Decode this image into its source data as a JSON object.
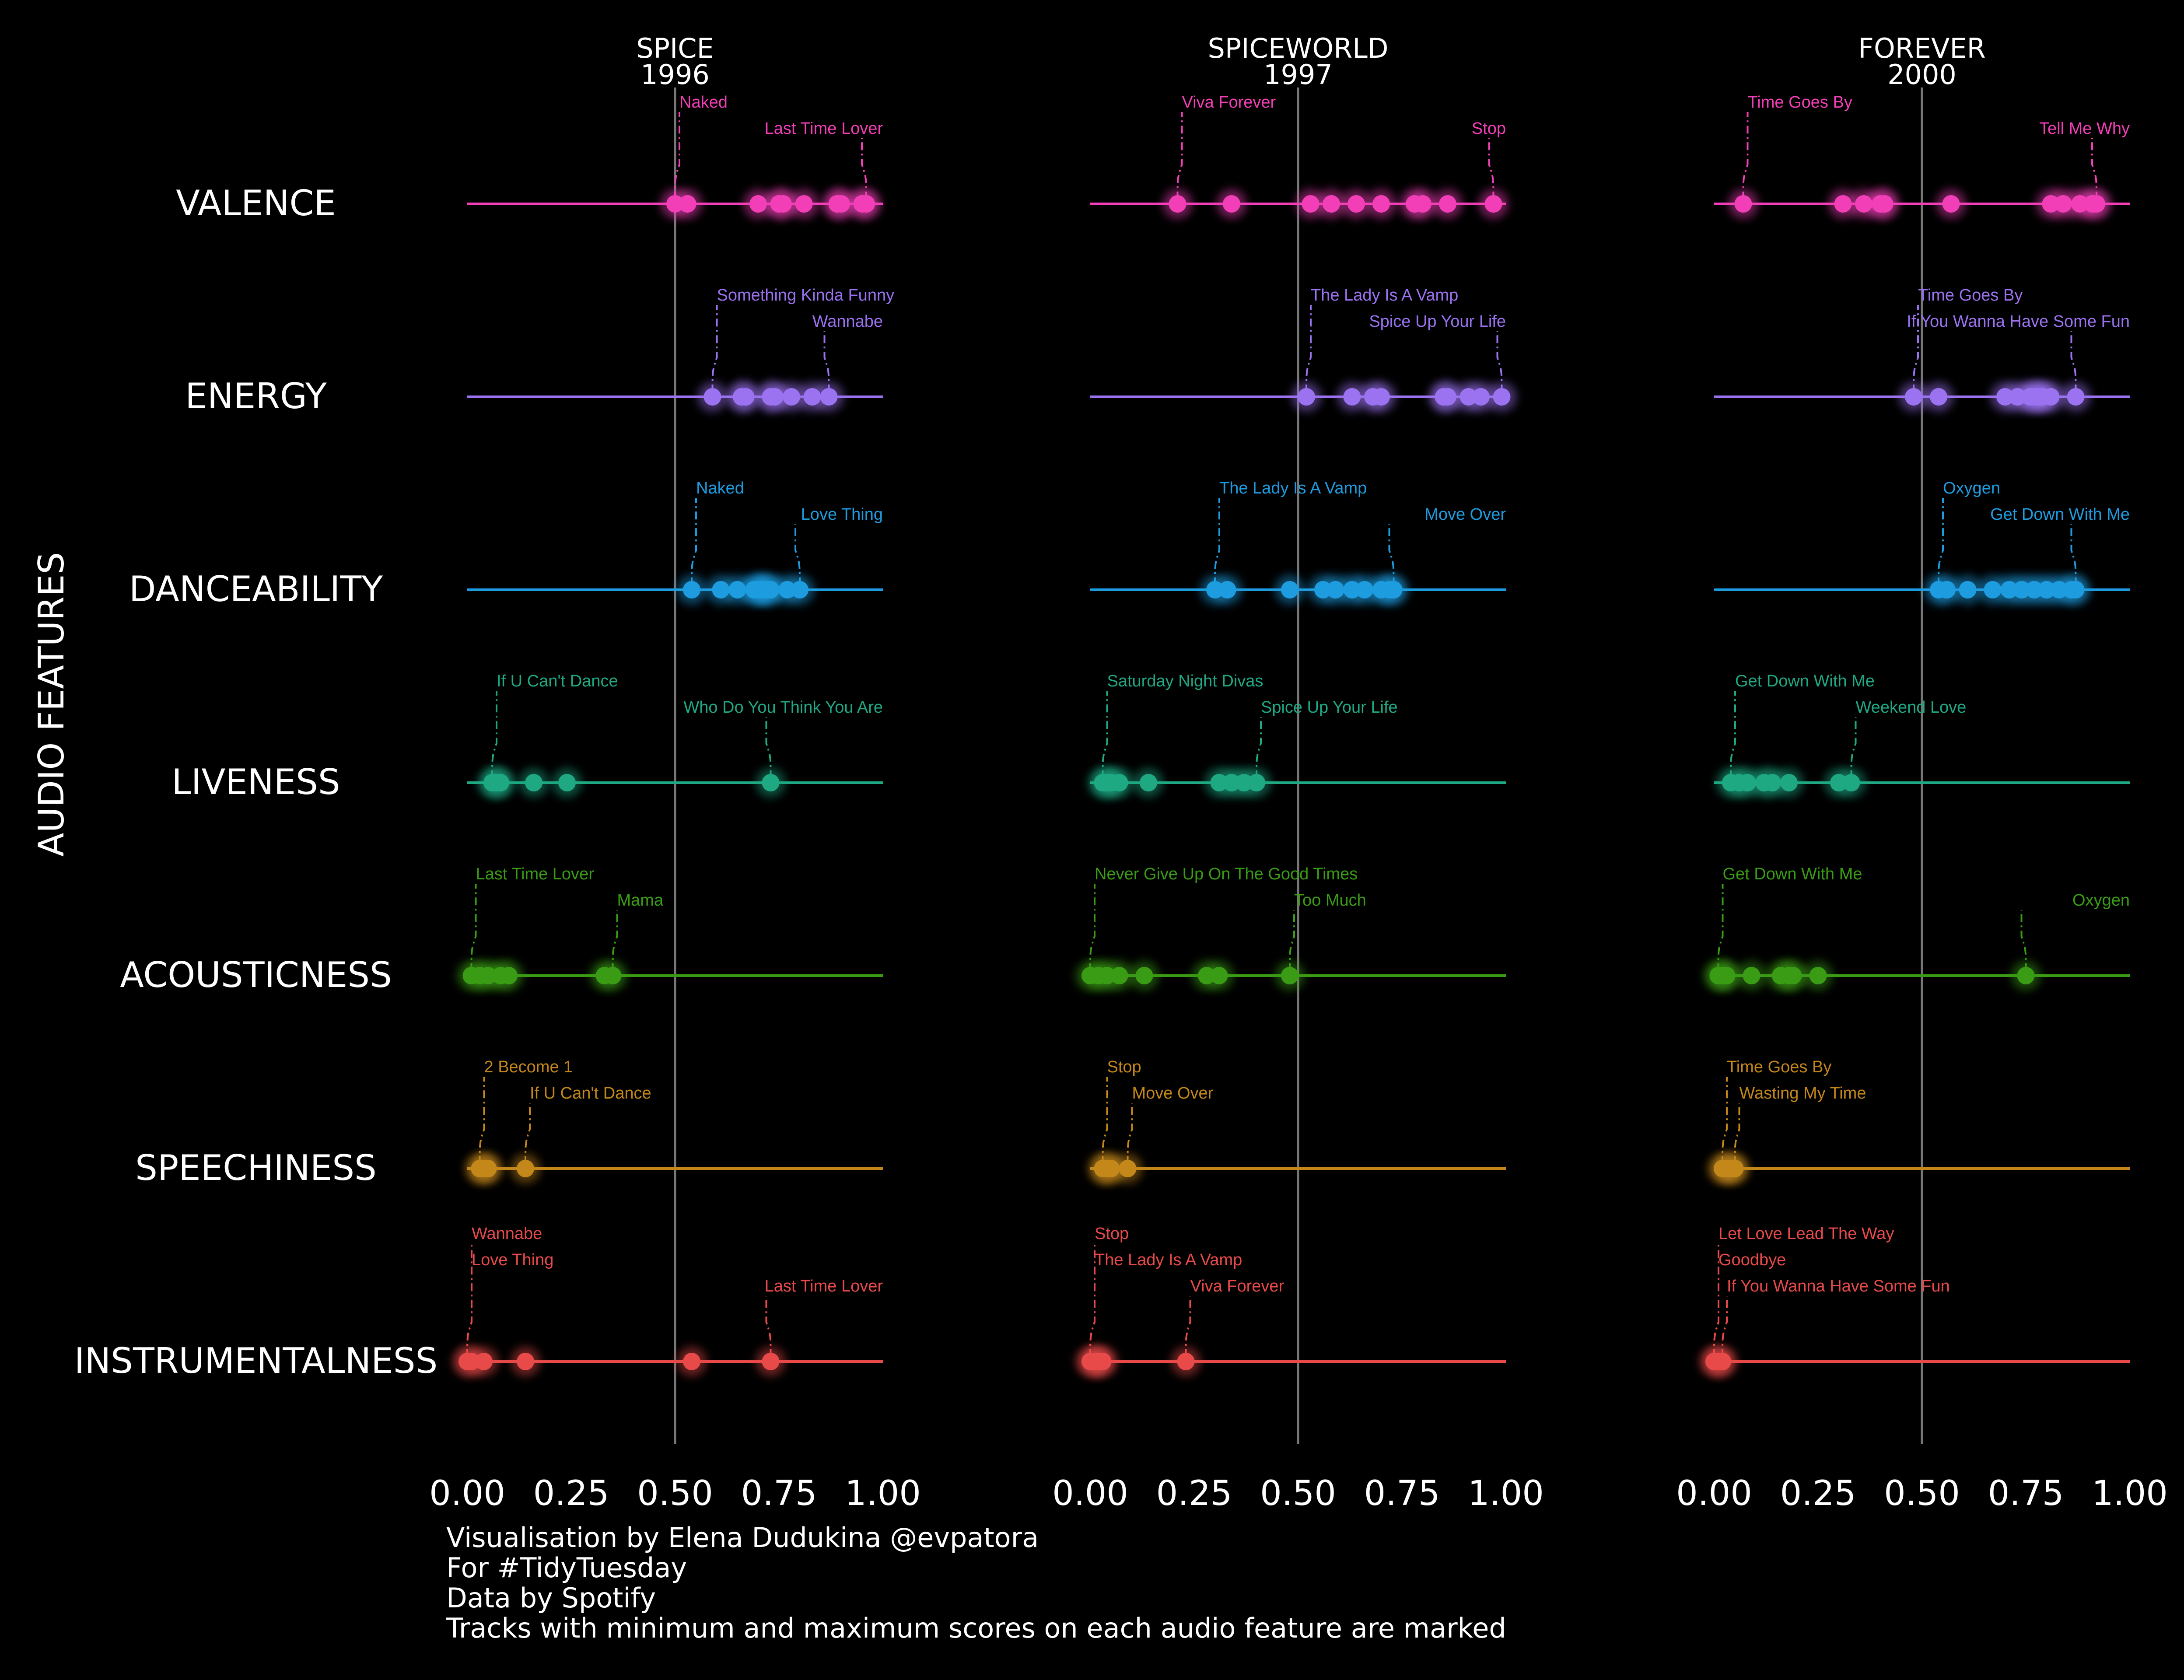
{
  "chart_data": {
    "type": "strip",
    "y_axis_title": "AUDIO FEATURES",
    "xlim": [
      0,
      1
    ],
    "x_ticks": [
      "0.00",
      "0.25",
      "0.50",
      "0.75",
      "1.00"
    ],
    "reference_line": 0.5,
    "colors": {
      "VALENCE": "#f23fb8",
      "ENERGY": "#9b72f0",
      "DANCEABILITY": "#1e9ce0",
      "LIVENESS": "#1fa983",
      "ACOUSTICNESS": "#3a9c14",
      "SPEECHINESS": "#c4871a",
      "INSTRUMENTALNESS": "#e84a4a"
    },
    "features": [
      "VALENCE",
      "ENERGY",
      "DANCEABILITY",
      "LIVENESS",
      "ACOUSTICNESS",
      "SPEECHINESS",
      "INSTRUMENTALNESS"
    ],
    "albums": [
      {
        "title": "SPICE",
        "year": "1996",
        "values": {
          "VALENCE": [
            0.5,
            0.53,
            0.7,
            0.75,
            0.76,
            0.81,
            0.89,
            0.9,
            0.95,
            0.96
          ],
          "ENERGY": [
            0.59,
            0.66,
            0.67,
            0.73,
            0.74,
            0.78,
            0.83,
            0.87
          ],
          "DANCEABILITY": [
            0.54,
            0.61,
            0.65,
            0.69,
            0.7,
            0.71,
            0.72,
            0.73,
            0.77,
            0.8
          ],
          "LIVENESS": [
            0.06,
            0.07,
            0.08,
            0.16,
            0.24,
            0.73
          ],
          "ACOUSTICNESS": [
            0.01,
            0.03,
            0.05,
            0.08,
            0.1,
            0.33,
            0.35
          ],
          "SPEECHINESS": [
            0.03,
            0.04,
            0.05,
            0.14
          ],
          "INSTRUMENTALNESS": [
            0.0,
            0.01,
            0.04,
            0.14,
            0.54,
            0.73
          ]
        },
        "labels": {
          "VALENCE": [
            "Naked",
            "Last Time Lover"
          ],
          "ENERGY": [
            "Something Kinda Funny",
            "Wannabe"
          ],
          "DANCEABILITY": [
            "Naked",
            "Love Thing"
          ],
          "LIVENESS": [
            "If U Can't Dance",
            "Who Do You Think You Are"
          ],
          "ACOUSTICNESS": [
            "Last Time Lover",
            "Mama"
          ],
          "SPEECHINESS": [
            "2 Become 1",
            "If U Can't Dance"
          ],
          "INSTRUMENTALNESS": [
            "Wannabe",
            "Love Thing",
            "Last Time Lover"
          ]
        }
      },
      {
        "title": "SPICEWORLD",
        "year": "1997",
        "values": {
          "VALENCE": [
            0.21,
            0.34,
            0.53,
            0.58,
            0.64,
            0.7,
            0.78,
            0.8,
            0.86,
            0.97
          ],
          "ENERGY": [
            0.52,
            0.63,
            0.68,
            0.7,
            0.85,
            0.86,
            0.91,
            0.94,
            0.99
          ],
          "DANCEABILITY": [
            0.3,
            0.33,
            0.48,
            0.56,
            0.59,
            0.63,
            0.66,
            0.7,
            0.72,
            0.73
          ],
          "LIVENESS": [
            0.03,
            0.04,
            0.05,
            0.07,
            0.14,
            0.31,
            0.34,
            0.37,
            0.4
          ],
          "ACOUSTICNESS": [
            0.0,
            0.02,
            0.04,
            0.07,
            0.13,
            0.28,
            0.31,
            0.48
          ],
          "SPEECHINESS": [
            0.03,
            0.04,
            0.05,
            0.09
          ],
          "INSTRUMENTALNESS": [
            0.0,
            0.01,
            0.02,
            0.03,
            0.23
          ]
        },
        "labels": {
          "VALENCE": [
            "Viva Forever",
            "Stop"
          ],
          "ENERGY": [
            "The Lady Is A Vamp",
            "Spice Up Your Life"
          ],
          "DANCEABILITY": [
            "The Lady Is A Vamp",
            "Move Over"
          ],
          "LIVENESS": [
            "Saturday Night Divas",
            "Spice Up Your Life"
          ],
          "ACOUSTICNESS": [
            "Never Give Up On The Good Times",
            "Too Much"
          ],
          "SPEECHINESS": [
            "Stop",
            "Move Over"
          ],
          "INSTRUMENTALNESS": [
            "Stop",
            "The Lady Is A Vamp",
            "Viva Forever"
          ]
        }
      },
      {
        "title": "FOREVER",
        "year": "2000",
        "values": {
          "VALENCE": [
            0.07,
            0.31,
            0.36,
            0.4,
            0.41,
            0.57,
            0.81,
            0.84,
            0.88,
            0.91,
            0.92
          ],
          "ENERGY": [
            0.48,
            0.54,
            0.7,
            0.73,
            0.76,
            0.77,
            0.78,
            0.79,
            0.81,
            0.87
          ],
          "DANCEABILITY": [
            0.54,
            0.56,
            0.61,
            0.67,
            0.71,
            0.74,
            0.77,
            0.8,
            0.83,
            0.86,
            0.87
          ],
          "LIVENESS": [
            0.04,
            0.06,
            0.08,
            0.12,
            0.14,
            0.18,
            0.3,
            0.33
          ],
          "ACOUSTICNESS": [
            0.01,
            0.02,
            0.03,
            0.09,
            0.16,
            0.18,
            0.19,
            0.25,
            0.75
          ],
          "SPEECHINESS": [
            0.02,
            0.03,
            0.04,
            0.05
          ],
          "INSTRUMENTALNESS": [
            0.0,
            0.01,
            0.02
          ]
        },
        "labels": {
          "VALENCE": [
            "Time Goes By",
            "Tell Me Why"
          ],
          "ENERGY": [
            "Time Goes By",
            "If You Wanna Have Some Fun"
          ],
          "DANCEABILITY": [
            "Oxygen",
            "Get Down With Me"
          ],
          "LIVENESS": [
            "Get Down With Me",
            "Weekend Love"
          ],
          "ACOUSTICNESS": [
            "Get Down With Me",
            "Oxygen"
          ],
          "SPEECHINESS": [
            "Time Goes By",
            "Wasting My Time"
          ],
          "INSTRUMENTALNESS": [
            "Let Love Lead The Way",
            "Goodbye",
            "If You Wanna Have Some Fun"
          ]
        }
      }
    ]
  },
  "caption": [
    "Visualisation by Elena Dudukina @evpatora",
    "For #TidyTuesday",
    "Data by Spotify",
    "Tracks with minimum and maximum scores on each audio feature are marked"
  ]
}
